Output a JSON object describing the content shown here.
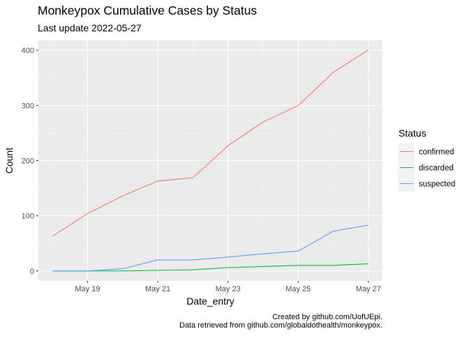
{
  "chart_data": {
    "type": "line",
    "title": "Monkeypox Cumulative Cases by Status",
    "subtitle": "Last update 2022-05-27",
    "xlabel": "Date_entry",
    "ylabel": "Count",
    "x": [
      "2022-05-18",
      "2022-05-19",
      "2022-05-20",
      "2022-05-21",
      "2022-05-22",
      "2022-05-23",
      "2022-05-24",
      "2022-05-25",
      "2022-05-26",
      "2022-05-27"
    ],
    "x_ticks": [
      {
        "date": "2022-05-19",
        "label": "May 19"
      },
      {
        "date": "2022-05-21",
        "label": "May 21"
      },
      {
        "date": "2022-05-23",
        "label": "May 23"
      },
      {
        "date": "2022-05-25",
        "label": "May 25"
      },
      {
        "date": "2022-05-27",
        "label": "May 27"
      }
    ],
    "y_ticks": [
      0,
      100,
      200,
      300,
      400
    ],
    "ylim": [
      -18,
      418
    ],
    "xlim": [
      "2022-05-17T14:24",
      "2022-05-27T09:36"
    ],
    "grid": true,
    "legend_title": "Status",
    "legend_position": "right",
    "series": [
      {
        "name": "confirmed",
        "color": "#F8766D",
        "values": [
          63,
          104,
          136,
          163,
          169,
          227,
          270,
          300,
          360,
          401
        ]
      },
      {
        "name": "discarded",
        "color": "#00BA38",
        "values": [
          0,
          0,
          0,
          1,
          2,
          6,
          8,
          10,
          10,
          13
        ]
      },
      {
        "name": "suspected",
        "color": "#619CFF",
        "values": [
          0,
          0,
          4,
          20,
          20,
          25,
          31,
          36,
          72,
          83
        ]
      }
    ],
    "caption": [
      "Created by github.com/UofUEpi.",
      "Data retrieved from github.com/globaldothealth/monkeypox."
    ]
  }
}
